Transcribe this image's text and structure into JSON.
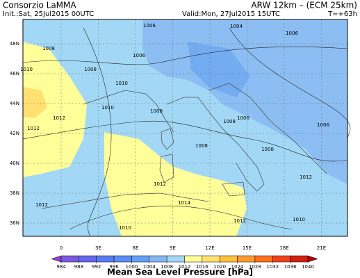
{
  "header": {
    "left_title": "Consorzio LaMMA",
    "right_title": "ARW 12km – (ECM 25km)",
    "init": "Init.:Sat, 25Jul2015 00UTC",
    "valid": "Valid:Mon, 27Jul2015 15UTC",
    "lead": "T=+63h"
  },
  "map": {
    "lat_labels": [
      "48N",
      "46N",
      "44N",
      "42N",
      "40N",
      "38N",
      "36N"
    ],
    "lon_labels": [
      "0",
      "3E",
      "6E",
      "9E",
      "12E",
      "15E",
      "18E",
      "21E"
    ],
    "contour_labels": [
      "1008",
      "1006",
      "1004",
      "1006",
      "1006",
      "1008",
      "1010",
      "1010",
      "1012",
      "1012",
      "1010",
      "1008",
      "1006",
      "1006",
      "1008",
      "1008",
      "1012",
      "1014",
      "1012",
      "1012",
      "1010",
      "1010",
      "1012",
      "1008"
    ]
  },
  "colorbar": {
    "levels": [
      984,
      988,
      992,
      996,
      1000,
      1004,
      1008,
      1012,
      1016,
      1020,
      1024,
      1028,
      1032,
      1036,
      1040
    ],
    "colors": [
      "#9a40d0",
      "#7a58e0",
      "#6468ea",
      "#587cf0",
      "#5a8ef2",
      "#64a0f2",
      "#84b6f2",
      "#a2d8f6",
      "#ffff99",
      "#ffe070",
      "#ffc040",
      "#ff9a30",
      "#ff7020",
      "#f04020",
      "#d02010",
      "#b00000"
    ],
    "title": "Mean Sea Level Pressure [hPa]"
  }
}
